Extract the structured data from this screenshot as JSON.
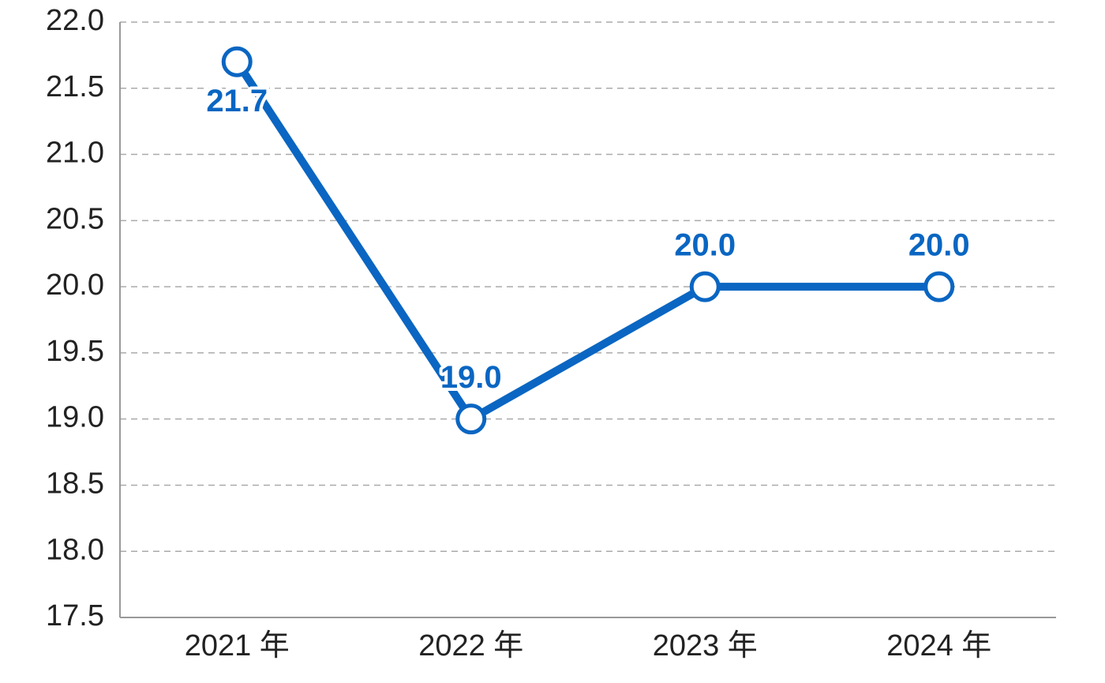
{
  "chart_data": {
    "type": "line",
    "categories": [
      "2021 年",
      "2022 年",
      "2023 年",
      "2024 年"
    ],
    "series": [
      {
        "name": "value",
        "color": "#0a66c2",
        "values": [
          21.7,
          19.0,
          20.0,
          20.0
        ],
        "value_labels": [
          "21.7",
          "19.0",
          "20.0",
          "20.0"
        ]
      }
    ],
    "ylim": [
      17.5,
      22.0
    ],
    "yticks": [
      17.5,
      {
        "value": 18.0,
        "label": "18.0"
      },
      18.5,
      {
        "value": 19.0,
        "label": "19.0"
      },
      19.5,
      {
        "value": 20.0,
        "label": "20.0"
      },
      20.5,
      {
        "value": 21.0,
        "label": "21.0"
      },
      21.5,
      {
        "value": 22.0,
        "label": "22.0"
      }
    ],
    "grid": true
  }
}
